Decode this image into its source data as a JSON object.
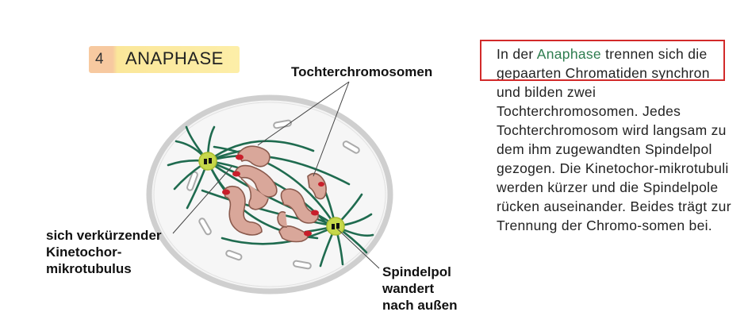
{
  "phase": {
    "number": "4",
    "title": "ANAPHASE"
  },
  "labels": {
    "daughter_chromosomes": "Tochterchromosomen",
    "kinetochore_microtubule": "sich verkürzender\nKinetochor-\nmikrotubulus",
    "spindle_pole": "Spindelpol\nwandert\nnach außen"
  },
  "description": {
    "prefix": "In der ",
    "keyword": "Anaphase",
    "body": " trennen sich die gepaarten Chromatiden synchron und bilden zwei Tochterchromosomen. Jedes Tochterchromosom wird langsam zu dem ihm zugewandten Spindelpol gezogen. Die Kinetochor-mikrotubuli werden kürzer und die Spindelpole rücken auseinander. Beides trägt zur Trennung der Chromo-somen bei."
  },
  "colors": {
    "microtubule": "#1f6b4f",
    "chromosome_fill": "#d9a79a",
    "chromosome_stroke": "#8a5a4d",
    "kinetochore": "#c81e2a",
    "pole": "#c7d84a",
    "cell_edge": "#c8c8c8",
    "highlight": "#d22a2a"
  }
}
